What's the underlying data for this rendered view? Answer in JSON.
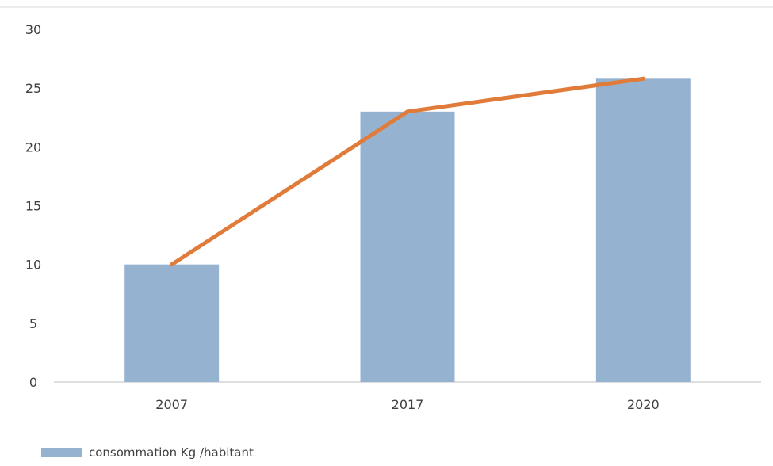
{
  "chart_data": {
    "type": "bar",
    "categories": [
      "2007",
      "2017",
      "2020"
    ],
    "series": [
      {
        "name": "consommation Kg /habitant",
        "type": "bar",
        "values": [
          10,
          23,
          25.8
        ],
        "color": "#95b3d1"
      },
      {
        "type": "line",
        "values": [
          10,
          23,
          25.8
        ],
        "color": "#e07b39"
      }
    ],
    "ylim": [
      0,
      30
    ],
    "yticks": [
      0,
      5,
      10,
      15,
      20,
      25,
      30
    ],
    "grid": false,
    "legend": {
      "position": "bottom-left"
    },
    "title": "",
    "xlabel": "",
    "ylabel": ""
  }
}
